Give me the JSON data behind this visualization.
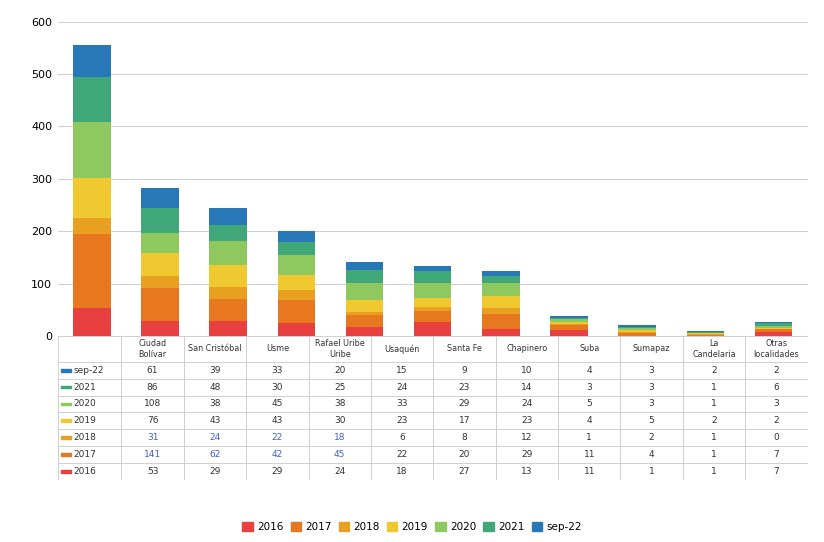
{
  "categories": [
    "Ciudad\nBolívar",
    "San Cristóbal",
    "Usme",
    "Rafael Uribe\nUribe",
    "Usaquén",
    "Santa Fe",
    "Chapinero",
    "Suba",
    "Sumapaz",
    "La\nCandelaria",
    "Otras\nlocalidades"
  ],
  "series": {
    "2016": [
      53,
      29,
      29,
      24,
      18,
      27,
      13,
      11,
      1,
      1,
      7
    ],
    "2017": [
      141,
      62,
      42,
      45,
      22,
      20,
      29,
      11,
      4,
      1,
      7
    ],
    "2018": [
      31,
      24,
      22,
      18,
      6,
      8,
      12,
      1,
      2,
      1,
      0
    ],
    "2019": [
      76,
      43,
      43,
      30,
      23,
      17,
      23,
      4,
      5,
      2,
      2
    ],
    "2020": [
      108,
      38,
      45,
      38,
      33,
      29,
      24,
      5,
      3,
      1,
      3
    ],
    "2021": [
      86,
      48,
      30,
      25,
      24,
      23,
      14,
      3,
      3,
      1,
      6
    ],
    "sep-22": [
      61,
      39,
      33,
      20,
      15,
      9,
      10,
      4,
      3,
      2,
      2
    ]
  },
  "colors": {
    "2016": "#E84040",
    "2017": "#E87820",
    "2018": "#E8A020",
    "2019": "#F0C830",
    "2020": "#90C860",
    "2021": "#40A878",
    "sep-22": "#2878B8"
  },
  "ylim": [
    0,
    600
  ],
  "yticks": [
    0,
    100,
    200,
    300,
    400,
    500,
    600
  ],
  "legend_order": [
    "2016",
    "2017",
    "2018",
    "2019",
    "2020",
    "2021",
    "sep-22"
  ],
  "background_color": "#FFFFFF",
  "grid_color": "#D0D0D0",
  "figsize": [
    8.24,
    5.42
  ],
  "dpi": 100
}
